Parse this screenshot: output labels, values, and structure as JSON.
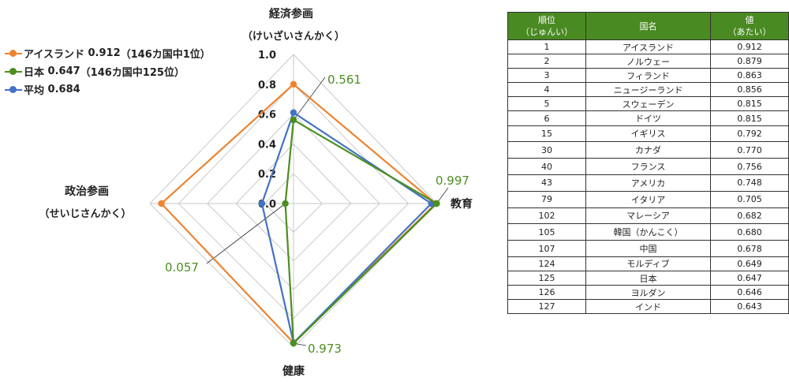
{
  "chart_data": {
    "type": "radar",
    "axes": [
      {
        "name": "経済参画",
        "reading": "（けいざいさんかく）"
      },
      {
        "name": "教育",
        "reading": ""
      },
      {
        "name": "健康",
        "reading": ""
      },
      {
        "name": "政治参画",
        "reading": "（せいじさんかく）"
      }
    ],
    "rlim": [
      0,
      1.0
    ],
    "ticks": [
      "0.0",
      "0.2",
      "0.4",
      "0.6",
      "0.8",
      "1.0"
    ],
    "grid": true,
    "legend_position": "top-left",
    "series": [
      {
        "name": "アイスランド",
        "total": "0.912",
        "rank_note": "（146カ国中1位）",
        "color": "#ee8331",
        "values": [
          0.8,
          0.99,
          0.97,
          0.92
        ]
      },
      {
        "name": "日本",
        "total": "0.647",
        "rank_note": "（146カ国中125位）",
        "color": "#4c8f1f",
        "values": [
          0.561,
          0.997,
          0.973,
          0.057
        ]
      },
      {
        "name": "平均",
        "total": "0.684",
        "rank_note": "",
        "color": "#4472c4",
        "values": [
          0.61,
          0.96,
          0.97,
          0.22
        ]
      }
    ],
    "annotations": [
      {
        "axis": 0,
        "value": "0.561",
        "color": "#4c8f1f"
      },
      {
        "axis": 1,
        "value": "0.997",
        "color": "#4c8f1f"
      },
      {
        "axis": 2,
        "value": "0.973",
        "color": "#4c8f1f"
      },
      {
        "axis": 3,
        "value": "0.057",
        "color": "#4c8f1f"
      }
    ]
  },
  "ranking_table": {
    "headers": [
      {
        "label": "順位",
        "sub": "（じゅんい）"
      },
      {
        "label": "国名",
        "sub": ""
      },
      {
        "label": "値",
        "sub": "（あたい）"
      }
    ],
    "rows": [
      {
        "rank": "1",
        "country": "アイスランド",
        "value": "0.912"
      },
      {
        "rank": "2",
        "country": "ノルウェー",
        "value": "0.879"
      },
      {
        "rank": "3",
        "country": "フィランド",
        "value": "0.863"
      },
      {
        "rank": "4",
        "country": "ニュージーランド",
        "value": "0.856"
      },
      {
        "rank": "5",
        "country": "スウェーデン",
        "value": "0.815"
      },
      {
        "rank": "6",
        "country": "ドイツ",
        "value": "0.815"
      },
      {
        "rank": "15",
        "country": "イギリス",
        "value": "0.792"
      },
      {
        "rank": "30",
        "country": "カナダ",
        "value": "0.770"
      },
      {
        "rank": "40",
        "country": "フランス",
        "value": "0.756"
      },
      {
        "rank": "43",
        "country": "アメリカ",
        "value": "0.748"
      },
      {
        "rank": "79",
        "country": "イタリア",
        "value": "0.705"
      },
      {
        "rank": "102",
        "country": "マレーシア",
        "value": "0.682"
      },
      {
        "rank": "105",
        "country": "韓国（かんこく）",
        "value": "0.680"
      },
      {
        "rank": "107",
        "country": "中国",
        "value": "0.678"
      },
      {
        "rank": "124",
        "country": "モルディブ",
        "value": "0.649"
      },
      {
        "rank": "125",
        "country": "日本",
        "value": "0.647"
      },
      {
        "rank": "126",
        "country": "ヨルダン",
        "value": "0.646"
      },
      {
        "rank": "127",
        "country": "インド",
        "value": "0.643"
      }
    ]
  }
}
